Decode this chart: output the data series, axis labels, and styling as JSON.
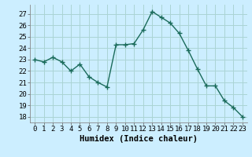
{
  "x": [
    0,
    1,
    2,
    3,
    4,
    5,
    6,
    7,
    8,
    9,
    10,
    11,
    12,
    13,
    14,
    15,
    16,
    17,
    18,
    19,
    20,
    21,
    22,
    23
  ],
  "y": [
    23.0,
    22.8,
    23.2,
    22.8,
    22.0,
    22.6,
    21.5,
    21.0,
    20.6,
    24.3,
    24.3,
    24.4,
    25.6,
    27.2,
    26.7,
    26.2,
    25.3,
    23.8,
    22.2,
    20.7,
    20.7,
    19.4,
    18.8,
    18.0
  ],
  "line_color": "#1a6b5a",
  "marker": "+",
  "marker_size": 4,
  "bg_color": "#cceeff",
  "grid_color": "#aad4d4",
  "xlabel": "Humidex (Indice chaleur)",
  "ylim": [
    17.5,
    27.8
  ],
  "xlim": [
    -0.5,
    23.5
  ],
  "yticks": [
    18,
    19,
    20,
    21,
    22,
    23,
    24,
    25,
    26,
    27
  ],
  "xticks": [
    0,
    1,
    2,
    3,
    4,
    5,
    6,
    7,
    8,
    9,
    10,
    11,
    12,
    13,
    14,
    15,
    16,
    17,
    18,
    19,
    20,
    21,
    22,
    23
  ],
  "tick_fontsize": 6.5,
  "label_fontsize": 7.5,
  "line_width": 1.0
}
